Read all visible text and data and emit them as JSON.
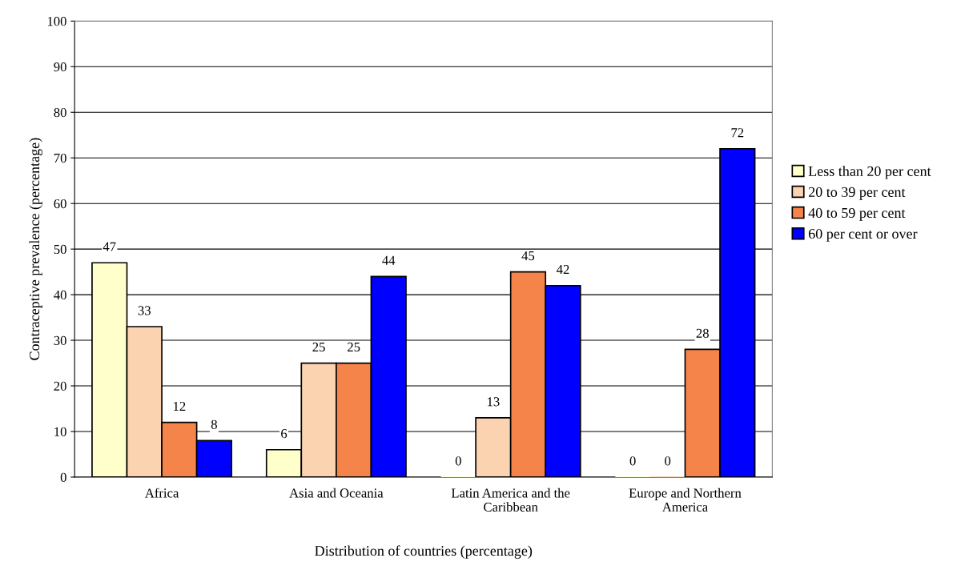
{
  "chart_data": {
    "type": "bar",
    "xlabel": "Distribution of countries (percentage)",
    "ylabel": "Contraceptive prevalence (percentage)",
    "categories": [
      "Africa",
      "Asia and Oceania",
      "Latin America and the\nCaribbean",
      "Europe and Northern\nAmerica"
    ],
    "series": [
      {
        "name": "Less than 20 per cent",
        "color": "#ffffcc",
        "values": [
          47,
          6,
          0,
          0
        ]
      },
      {
        "name": "20 to 39 per cent",
        "color": "#fbd3b0",
        "values": [
          33,
          25,
          13,
          0
        ]
      },
      {
        "name": "40 to 59 per cent",
        "color": "#f4844a",
        "values": [
          12,
          25,
          45,
          28
        ]
      },
      {
        "name": "60 per cent or over",
        "color": "#0000ff",
        "values": [
          8,
          44,
          42,
          72
        ]
      }
    ],
    "ylim": [
      0,
      100
    ],
    "yticks": [
      0,
      10,
      20,
      30,
      40,
      50,
      60,
      70,
      80,
      90,
      100
    ],
    "grid": "y",
    "legend": "right",
    "data_labels": true
  }
}
